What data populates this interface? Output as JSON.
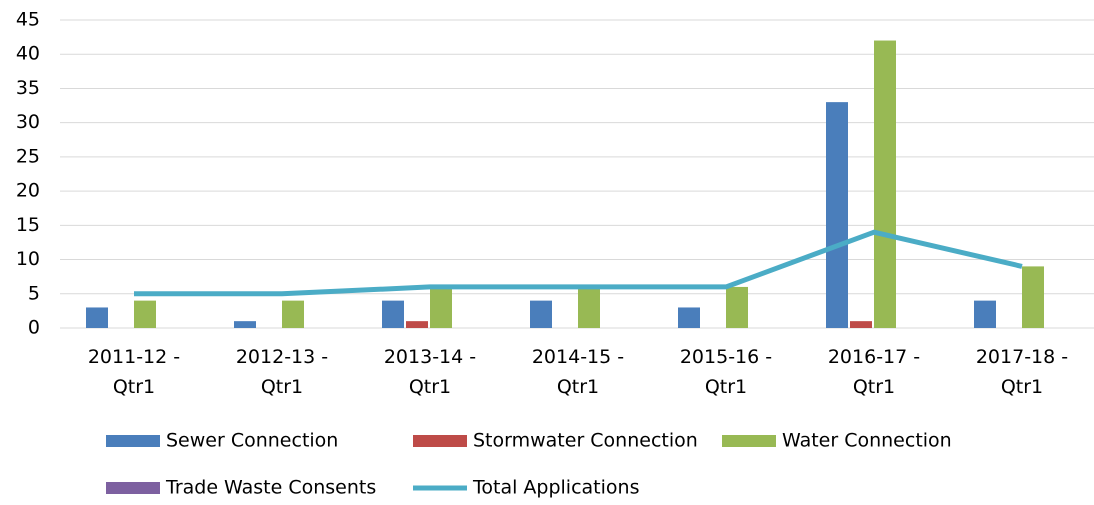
{
  "chart_data": {
    "type": "bar",
    "categories": [
      "2011-12 - Qtr1",
      "2012-13 - Qtr1",
      "2013-14 - Qtr1",
      "2014-15 - Qtr1",
      "2015-16 - Qtr1",
      "2016-17 - Qtr1",
      "2017-18 - Qtr1"
    ],
    "series": [
      {
        "name": "Sewer Connection",
        "color": "#4a7ebb",
        "values": [
          3,
          1,
          4,
          4,
          3,
          33,
          4
        ]
      },
      {
        "name": "Stormwater Connection",
        "color": "#be4b48",
        "values": [
          0,
          0,
          1,
          0,
          0,
          1,
          0
        ]
      },
      {
        "name": "Water Connection",
        "color": "#98b954",
        "values": [
          4,
          4,
          6,
          6,
          6,
          42,
          9
        ]
      },
      {
        "name": "Trade Waste Consents",
        "color": "#7d60a0",
        "values": [
          0,
          0,
          0,
          0,
          0,
          0,
          0
        ]
      },
      {
        "name": "Total Applications",
        "color": "#4bacc6",
        "type": "line",
        "values": [
          5,
          5,
          6,
          6,
          6,
          14,
          9
        ]
      }
    ],
    "ylim": [
      0,
      45
    ],
    "yticks": [
      0,
      5,
      10,
      15,
      20,
      25,
      30,
      35,
      40,
      45
    ],
    "grid": true,
    "legend": "bottom"
  }
}
